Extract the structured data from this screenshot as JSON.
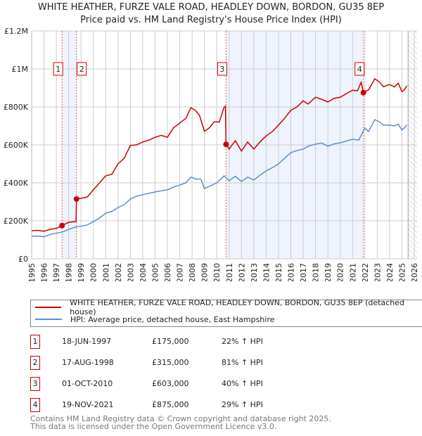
{
  "title": "WHITE HEATHER, FURZE VALE ROAD, HEADLEY DOWN, BORDON, GU35 8EP",
  "subtitle": "Price paid vs. HM Land Registry's House Price Index (HPI)",
  "colors": {
    "red": "#cc0000",
    "blue": "#5b8fd0",
    "shade": "#eef3fd",
    "grid": "#cccccc"
  },
  "chart_data": {
    "type": "line",
    "title": "Price paid vs. HM Land Registry's House Price Index (HPI)",
    "xlabel": "",
    "ylabel": "",
    "xlim": [
      1995,
      2026
    ],
    "ylim": [
      0,
      1200000
    ],
    "grid": true,
    "x_ticks": [
      "1995",
      "1996",
      "1997",
      "1998",
      "1999",
      "2000",
      "2001",
      "2002",
      "2003",
      "2004",
      "2005",
      "2006",
      "2007",
      "2008",
      "2009",
      "2010",
      "2011",
      "2012",
      "2013",
      "2014",
      "2015",
      "2016",
      "2017",
      "2018",
      "2019",
      "2020",
      "2021",
      "2022",
      "2023",
      "2024",
      "2025",
      "2026"
    ],
    "y_ticks": [
      {
        "v": 0,
        "label": "£0"
      },
      {
        "v": 200000,
        "label": "£200K"
      },
      {
        "v": 400000,
        "label": "£400K"
      },
      {
        "v": 600000,
        "label": "£600K"
      },
      {
        "v": 800000,
        "label": "£800K"
      },
      {
        "v": 1000000,
        "label": "£1M"
      },
      {
        "v": 1200000,
        "label": "£1.2M"
      }
    ],
    "forecast_hatch_from": 2025.5,
    "shaded_ranges": [
      [
        1997.46,
        1998.63
      ],
      [
        2010.75,
        2021.88
      ]
    ],
    "series": [
      {
        "name": "WHITE HEATHER, FURZE VALE ROAD, HEADLEY DOWN, BORDON, GU35 8EP (detached house)",
        "color": "#cc0000",
        "points": [
          [
            1995,
            148000
          ],
          [
            1995.5,
            150000
          ],
          [
            1996,
            145000
          ],
          [
            1996.5,
            155000
          ],
          [
            1997,
            160000
          ],
          [
            1997.46,
            175000
          ],
          [
            1998,
            192000
          ],
          [
            1998.6,
            196000
          ],
          [
            1998.63,
            315000
          ],
          [
            1999,
            318000
          ],
          [
            1999.5,
            325000
          ],
          [
            2000,
            363000
          ],
          [
            2000.5,
            400000
          ],
          [
            2001,
            437000
          ],
          [
            2001.5,
            445000
          ],
          [
            2002,
            500000
          ],
          [
            2002.5,
            530000
          ],
          [
            2003,
            597000
          ],
          [
            2003.5,
            600000
          ],
          [
            2004,
            615000
          ],
          [
            2004.5,
            625000
          ],
          [
            2005,
            640000
          ],
          [
            2005.5,
            650000
          ],
          [
            2006,
            640000
          ],
          [
            2006.5,
            690000
          ],
          [
            2007,
            715000
          ],
          [
            2007.5,
            740000
          ],
          [
            2007.9,
            796000
          ],
          [
            2008.3,
            780000
          ],
          [
            2008.6,
            755000
          ],
          [
            2009,
            671000
          ],
          [
            2009.4,
            690000
          ],
          [
            2009.8,
            722000
          ],
          [
            2010.2,
            720000
          ],
          [
            2010.6,
            800000
          ],
          [
            2010.7,
            803000
          ],
          [
            2010.75,
            603000
          ],
          [
            2011,
            578000
          ],
          [
            2011.5,
            622000
          ],
          [
            2012,
            567000
          ],
          [
            2012.5,
            615000
          ],
          [
            2013,
            578000
          ],
          [
            2013.5,
            615000
          ],
          [
            2014,
            647000
          ],
          [
            2014.5,
            670000
          ],
          [
            2015,
            704000
          ],
          [
            2015.5,
            740000
          ],
          [
            2016,
            782000
          ],
          [
            2016.5,
            800000
          ],
          [
            2017,
            832000
          ],
          [
            2017.4,
            815000
          ],
          [
            2018,
            851000
          ],
          [
            2018.5,
            840000
          ],
          [
            2019,
            826000
          ],
          [
            2019.5,
            845000
          ],
          [
            2020,
            851000
          ],
          [
            2020.5,
            870000
          ],
          [
            2021,
            888000
          ],
          [
            2021.4,
            885000
          ],
          [
            2021.7,
            930000
          ],
          [
            2021.88,
            875000
          ],
          [
            2022.3,
            890000
          ],
          [
            2022.8,
            948000
          ],
          [
            2023.2,
            930000
          ],
          [
            2023.5,
            906000
          ],
          [
            2024,
            918000
          ],
          [
            2024.4,
            905000
          ],
          [
            2024.7,
            925000
          ],
          [
            2025,
            881000
          ],
          [
            2025.2,
            890000
          ],
          [
            2025.4,
            911000
          ]
        ]
      },
      {
        "name": "HPI: Average price, detached house, East Hampshire",
        "color": "#5b8fd0",
        "points": [
          [
            1995,
            118000
          ],
          [
            1995.5,
            120000
          ],
          [
            1996,
            116000
          ],
          [
            1996.5,
            128000
          ],
          [
            1997,
            135000
          ],
          [
            1997.5,
            141000
          ],
          [
            1998,
            155000
          ],
          [
            1998.5,
            166000
          ],
          [
            1999,
            172000
          ],
          [
            1999.5,
            178000
          ],
          [
            2000,
            196000
          ],
          [
            2000.5,
            215000
          ],
          [
            2001,
            240000
          ],
          [
            2001.5,
            250000
          ],
          [
            2002,
            270000
          ],
          [
            2002.5,
            285000
          ],
          [
            2003,
            315000
          ],
          [
            2003.5,
            330000
          ],
          [
            2004,
            338000
          ],
          [
            2004.5,
            345000
          ],
          [
            2005,
            352000
          ],
          [
            2005.5,
            358000
          ],
          [
            2006,
            363000
          ],
          [
            2006.5,
            378000
          ],
          [
            2007,
            388000
          ],
          [
            2007.5,
            400000
          ],
          [
            2007.9,
            430000
          ],
          [
            2008.3,
            420000
          ],
          [
            2008.7,
            420000
          ],
          [
            2009,
            370000
          ],
          [
            2009.5,
            385000
          ],
          [
            2010,
            400000
          ],
          [
            2010.6,
            437000
          ],
          [
            2011,
            411000
          ],
          [
            2011.5,
            435000
          ],
          [
            2012,
            407000
          ],
          [
            2012.5,
            430000
          ],
          [
            2013,
            415000
          ],
          [
            2013.5,
            440000
          ],
          [
            2014,
            463000
          ],
          [
            2014.5,
            480000
          ],
          [
            2015,
            500000
          ],
          [
            2015.5,
            530000
          ],
          [
            2016,
            559000
          ],
          [
            2016.5,
            570000
          ],
          [
            2017,
            578000
          ],
          [
            2017.5,
            595000
          ],
          [
            2018,
            604000
          ],
          [
            2018.5,
            610000
          ],
          [
            2019,
            593000
          ],
          [
            2019.5,
            605000
          ],
          [
            2020,
            611000
          ],
          [
            2020.5,
            620000
          ],
          [
            2021,
            630000
          ],
          [
            2021.5,
            625000
          ],
          [
            2022,
            689000
          ],
          [
            2022.3,
            670000
          ],
          [
            2022.8,
            733000
          ],
          [
            2023.2,
            720000
          ],
          [
            2023.5,
            704000
          ],
          [
            2024,
            704000
          ],
          [
            2024.4,
            700000
          ],
          [
            2024.7,
            710000
          ],
          [
            2025,
            678000
          ],
          [
            2025.2,
            690000
          ],
          [
            2025.4,
            704000
          ]
        ]
      }
    ],
    "sales": [
      {
        "n": "1",
        "x": 1997.46,
        "y": 175000
      },
      {
        "n": "2",
        "x": 1998.63,
        "y": 315000
      },
      {
        "n": "3",
        "x": 2010.75,
        "y": 603000
      },
      {
        "n": "4",
        "x": 2021.88,
        "y": 875000
      }
    ]
  },
  "legend": {
    "property": "WHITE HEATHER, FURZE VALE ROAD, HEADLEY DOWN, BORDON, GU35 8EP (detached house)",
    "hpi": "HPI: Average price, detached house, East Hampshire"
  },
  "transactions": [
    {
      "n": "1",
      "date": "18-JUN-1997",
      "price": "£175,000",
      "hpi": "22% ↑ HPI"
    },
    {
      "n": "2",
      "date": "17-AUG-1998",
      "price": "£315,000",
      "hpi": "81% ↑ HPI"
    },
    {
      "n": "3",
      "date": "01-OCT-2010",
      "price": "£603,000",
      "hpi": "40% ↑ HPI"
    },
    {
      "n": "4",
      "date": "19-NOV-2021",
      "price": "£875,000",
      "hpi": "29% ↑ HPI"
    }
  ],
  "footer": {
    "line1": "Contains HM Land Registry data © Crown copyright and database right 2025.",
    "line2": "This data is licensed under the Open Government Licence v3.0."
  }
}
